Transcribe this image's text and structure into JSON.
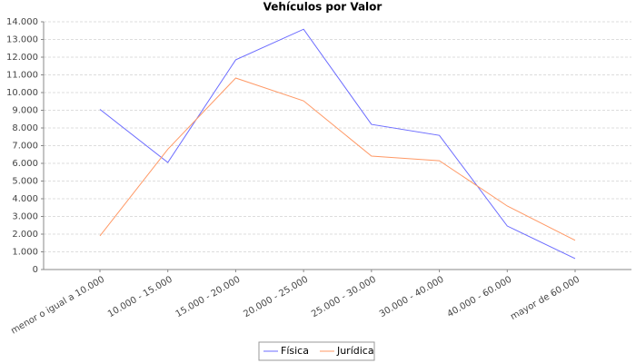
{
  "chart_data": {
    "type": "line",
    "title": "Vehículos por Valor",
    "categories": [
      "menor o igual a 10.000",
      "10.000 - 15.000",
      "15.000 - 20.000",
      "20.000 - 25.000",
      "25.000 - 30.000",
      "30.000 - 40.000",
      "40.000 - 60.000",
      "mayor de 60.000"
    ],
    "series": [
      {
        "name": "Física",
        "color": "#6b6bff",
        "values": [
          9050,
          6050,
          11850,
          13580,
          8200,
          7580,
          2460,
          620
        ]
      },
      {
        "name": "Jurídica",
        "color": "#ff9966",
        "values": [
          1900,
          6800,
          10820,
          9530,
          6410,
          6150,
          3590,
          1650
        ]
      }
    ],
    "ylim": [
      0,
      14000
    ],
    "yticks": [
      0,
      {
        "value": 1000,
        "label": "1.000"
      },
      {
        "value": 2000,
        "label": "2.000"
      },
      {
        "value": 3000,
        "label": "3.000"
      },
      {
        "value": 4000,
        "label": "4.000"
      },
      {
        "value": 5000,
        "label": "5.000"
      },
      {
        "value": 6000,
        "label": "6.000"
      },
      {
        "value": 7000,
        "label": "7.000"
      },
      {
        "value": 8000,
        "label": "8.000"
      },
      {
        "value": 9000,
        "label": "9.000"
      },
      {
        "value": 10000,
        "label": "10.000"
      },
      {
        "value": 11000,
        "label": "11.000"
      },
      {
        "value": 12000,
        "label": "12.000"
      },
      {
        "value": 13000,
        "label": "13.000"
      },
      {
        "value": 14000,
        "label": "14.000"
      }
    ],
    "grid": true
  }
}
